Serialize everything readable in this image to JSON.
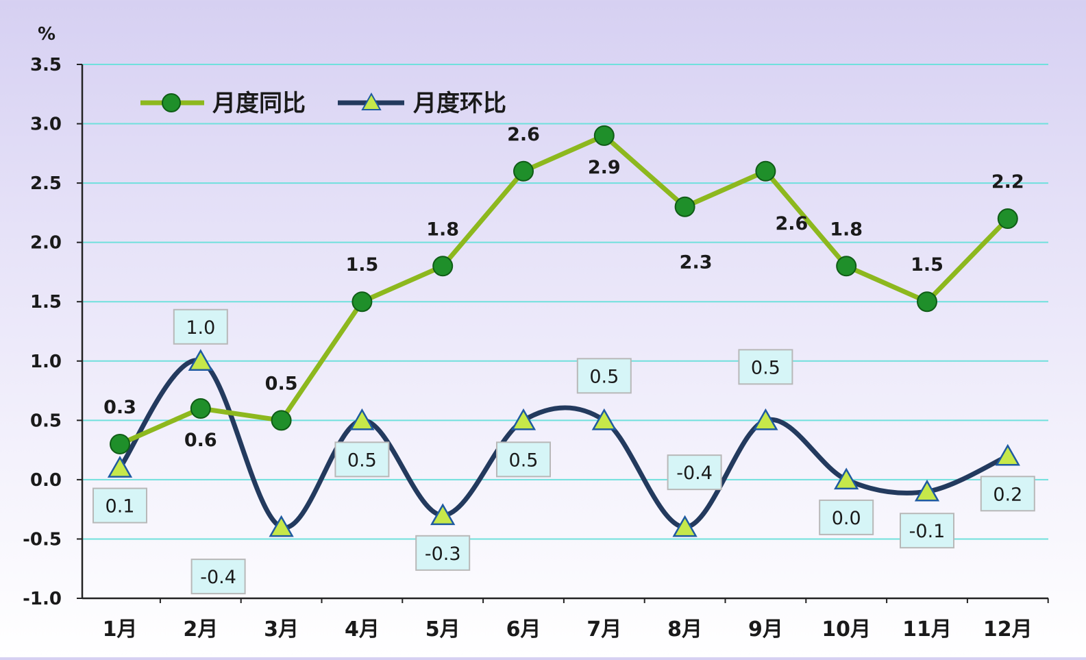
{
  "chart_data": {
    "type": "line",
    "unit": "%",
    "categories": [
      "1月",
      "2月",
      "3月",
      "4月",
      "5月",
      "6月",
      "7月",
      "8月",
      "9月",
      "10月",
      "11月",
      "12月"
    ],
    "ylim": [
      -1.0,
      3.5
    ],
    "yticks": [
      "3.5",
      "3.0",
      "2.5",
      "2.0",
      "1.5",
      "1.0",
      "0.5",
      "0.0",
      "-0.5",
      "-1.0"
    ],
    "ytick_values": [
      3.5,
      3.0,
      2.5,
      2.0,
      1.5,
      1.0,
      0.5,
      0.0,
      -0.5,
      -1.0
    ],
    "grid": true,
    "legend_position": "top-left",
    "series": [
      {
        "name": "月度同比",
        "values": [
          0.3,
          0.6,
          0.5,
          1.5,
          1.8,
          2.6,
          2.9,
          2.3,
          2.6,
          1.8,
          1.5,
          2.2
        ],
        "labels": [
          "0.3",
          "0.6",
          "0.5",
          "1.5",
          "1.8",
          "2.6",
          "2.9",
          "2.3",
          "2.6",
          "1.8",
          "1.5",
          "2.2"
        ],
        "color": "#8db81e",
        "marker": "circle",
        "marker_color": "#1f8f2a"
      },
      {
        "name": "月度环比",
        "values": [
          0.1,
          1.0,
          -0.4,
          0.5,
          -0.3,
          0.5,
          0.5,
          -0.4,
          0.5,
          0.0,
          -0.1,
          0.2
        ],
        "labels": [
          "0.1",
          "1.0",
          "-0.4",
          "0.5",
          "-0.3",
          "0.5",
          "0.5",
          "-0.4",
          "0.5",
          "0.0",
          "-0.1",
          "0.2"
        ],
        "color": "#233a5e",
        "marker": "triangle",
        "marker_color": "#c6e84a",
        "smooth": true
      }
    ],
    "colors": {
      "grid": "#6fe0dc",
      "axis": "#222222",
      "label_box_fill": "#d6f5f7",
      "label_box_stroke": "#b8b8b8"
    }
  }
}
